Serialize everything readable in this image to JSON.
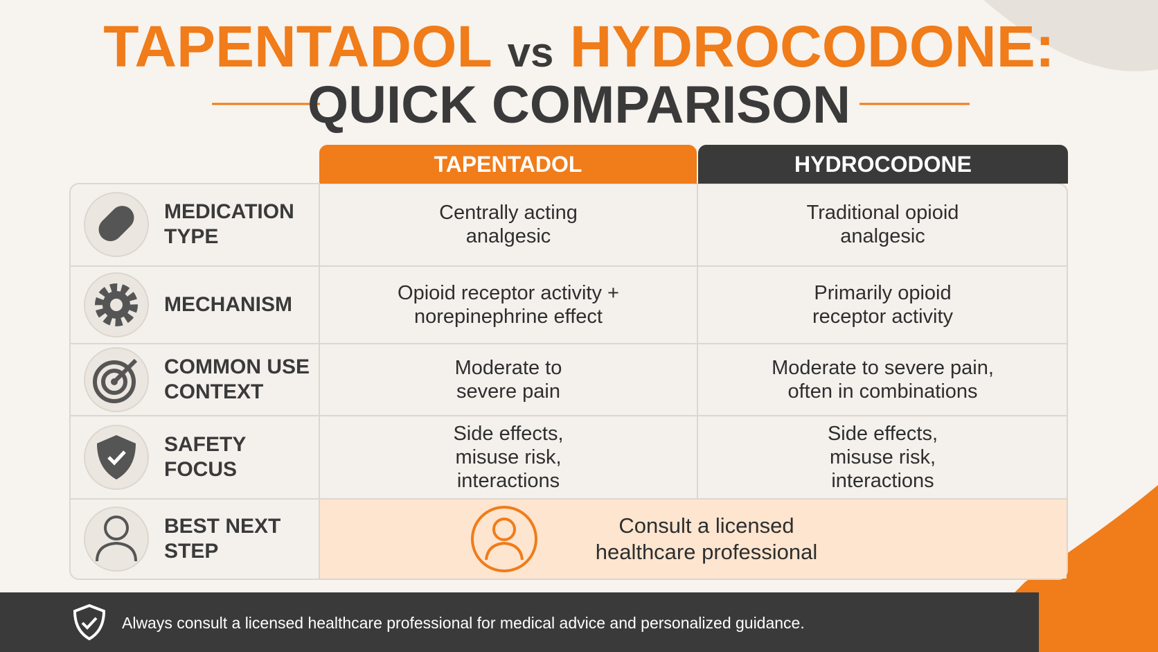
{
  "header": {
    "title_left": "TAPENTADOL",
    "title_vs": "vs",
    "title_right": "HYDROCODONE:",
    "subtitle": "QUICK COMPARISON"
  },
  "table": {
    "columns": [
      "TAPENTADOL",
      "HYDROCODONE"
    ],
    "rows": [
      {
        "label": "MEDICATION TYPE",
        "tapentadol": "Centrally acting analgesic",
        "hydrocodone": "Traditional opioid analgesic"
      },
      {
        "label": "MECHANISM",
        "tapentadol": "Opioid receptor activity + norepinephrine effect",
        "hydrocodone": "Primarily opioid receptor activity"
      },
      {
        "label": "COMMON USE CONTEXT",
        "tapentadol": "Moderate to severe pain",
        "hydrocodone": "Moderate to severe pain, often in combinations"
      },
      {
        "label": "SAFETY FOCUS",
        "tapentadol": "Side effects, misuse risk, interactions",
        "hydrocodone": "Side effects, misuse risk, interactions"
      },
      {
        "label": "BEST NEXT STEP",
        "recommendation": "Consult a licensed healthcare professional"
      }
    ]
  },
  "footer": {
    "text": "Always consult a licensed healthcare professional for medical advice and personalized guidance."
  }
}
